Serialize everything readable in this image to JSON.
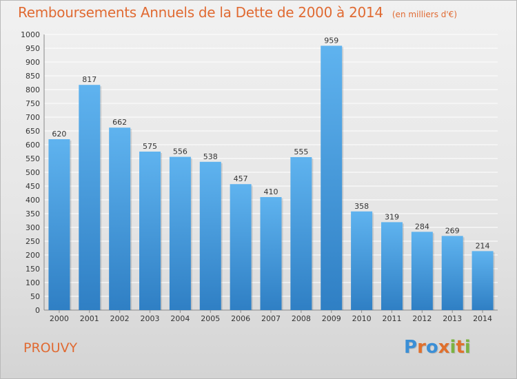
{
  "chart_data": {
    "type": "bar",
    "title": "Remboursements Annuels de la Dette de 2000 à 2014",
    "subtitle": "(en milliers d'€)",
    "categories": [
      "2000",
      "2001",
      "2002",
      "2003",
      "2004",
      "2005",
      "2006",
      "2007",
      "2008",
      "2009",
      "2010",
      "2011",
      "2012",
      "2013",
      "2014"
    ],
    "values": [
      620,
      817,
      662,
      575,
      556,
      538,
      457,
      410,
      555,
      959,
      358,
      319,
      284,
      269,
      214
    ],
    "ylim": [
      0,
      1000
    ],
    "ytick_step": 50,
    "grid": true,
    "legend": "none",
    "bar_color": "#4aa3e4",
    "title_color": "#e06a32"
  },
  "place_name": "PROUVY",
  "logo": {
    "text": "Proxiti",
    "letters": [
      {
        "ch": "P",
        "color": "#3b8fd6"
      },
      {
        "ch": "r",
        "color": "#e0702d"
      },
      {
        "ch": "o",
        "color": "#3b8fd6"
      },
      {
        "ch": "x",
        "color": "#e0702d"
      },
      {
        "ch": "i",
        "color": "#7cb342"
      },
      {
        "ch": "t",
        "color": "#e0702d"
      },
      {
        "ch": "i",
        "color": "#7cb342"
      }
    ]
  }
}
